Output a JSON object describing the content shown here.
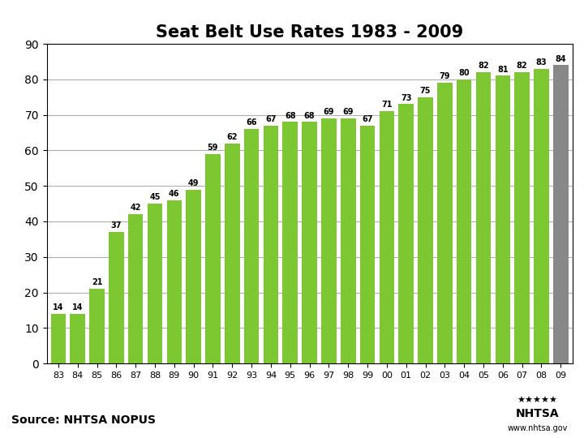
{
  "chart_data": {
    "type": "bar",
    "title": "Seat Belt Use Rates 1983 - 2009",
    "categories": [
      "83",
      "84",
      "85",
      "86",
      "87",
      "88",
      "89",
      "90",
      "91",
      "92",
      "93",
      "94",
      "95",
      "96",
      "97",
      "98",
      "99",
      "00",
      "01",
      "02",
      "03",
      "04",
      "05",
      "06",
      "07",
      "08",
      "09"
    ],
    "values": [
      14,
      14,
      21,
      37,
      42,
      45,
      46,
      49,
      59,
      62,
      66,
      67,
      68,
      68,
      69,
      69,
      67,
      71,
      73,
      75,
      79,
      80,
      82,
      81,
      82,
      83,
      84
    ],
    "colors": [
      "#7dc832",
      "#7dc832",
      "#7dc832",
      "#7dc832",
      "#7dc832",
      "#7dc832",
      "#7dc832",
      "#7dc832",
      "#7dc832",
      "#7dc832",
      "#7dc832",
      "#7dc832",
      "#7dc832",
      "#7dc832",
      "#7dc832",
      "#7dc832",
      "#7dc832",
      "#7dc832",
      "#7dc832",
      "#7dc832",
      "#7dc832",
      "#7dc832",
      "#7dc832",
      "#7dc832",
      "#7dc832",
      "#7dc832",
      "#888888"
    ],
    "ylim": [
      0,
      90
    ],
    "yticks": [
      0,
      10,
      20,
      30,
      40,
      50,
      60,
      70,
      80,
      90
    ],
    "grid": true,
    "data_labels": true,
    "annotations": [
      "Source: NHTSA NOPUS",
      "★★★★★",
      "NHTSA",
      "www.nhtsa.gov"
    ]
  }
}
